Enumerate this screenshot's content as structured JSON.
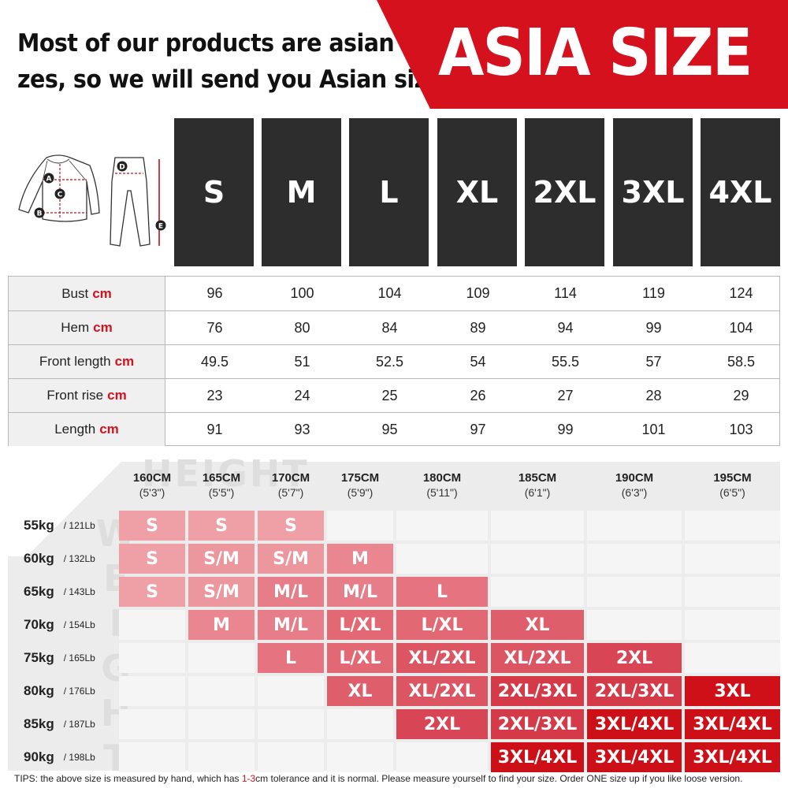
{
  "header": {
    "headline_line1": "Most of our products are asian si-",
    "headline_line2": "zes, so we will send you Asian sizes",
    "banner": "ASIA SIZE",
    "accent_color": "#d4111d"
  },
  "garment_labels": [
    "A",
    "B",
    "C",
    "D",
    "E"
  ],
  "sizes": [
    "S",
    "M",
    "L",
    "XL",
    "2XL",
    "3XL",
    "4XL"
  ],
  "measurements": [
    {
      "label": "Bust",
      "unit": "cm",
      "values": [
        "96",
        "100",
        "104",
        "109",
        "114",
        "119",
        "124"
      ]
    },
    {
      "label": "Hem",
      "unit": "cm",
      "values": [
        "76",
        "80",
        "84",
        "89",
        "94",
        "99",
        "104"
      ]
    },
    {
      "label": "Front length",
      "unit": "cm",
      "values": [
        "49.5",
        "51",
        "52.5",
        "54",
        "55.5",
        "57",
        "58.5"
      ]
    },
    {
      "label": "Front rise",
      "unit": "cm",
      "values": [
        "23",
        "24",
        "25",
        "26",
        "27",
        "28",
        "29"
      ]
    },
    {
      "label": "Length",
      "unit": "cm",
      "values": [
        "91",
        "93",
        "95",
        "97",
        "99",
        "101",
        "103"
      ]
    }
  ],
  "chart": {
    "height_watermark": "HEIGHT",
    "weight_watermark": "WEIGHT",
    "heights": [
      {
        "cm": "160CM",
        "ft": "(5'3\")"
      },
      {
        "cm": "165CM",
        "ft": "(5'5\")"
      },
      {
        "cm": "170CM",
        "ft": "(5'7\")"
      },
      {
        "cm": "175CM",
        "ft": "(5'9\")"
      },
      {
        "cm": "180CM",
        "ft": "(5'11\")"
      },
      {
        "cm": "185CM",
        "ft": "(6'1\")"
      },
      {
        "cm": "190CM",
        "ft": "(6'3\")"
      },
      {
        "cm": "195CM",
        "ft": "(6'5\")"
      }
    ],
    "weights": [
      {
        "kg": "55kg",
        "lb": "/ 121Lb"
      },
      {
        "kg": "60kg",
        "lb": "/ 132Lb"
      },
      {
        "kg": "65kg",
        "lb": "/ 143Lb"
      },
      {
        "kg": "70kg",
        "lb": "/ 154Lb"
      },
      {
        "kg": "75kg",
        "lb": "/ 165Lb"
      },
      {
        "kg": "80kg",
        "lb": "/ 176Lb"
      },
      {
        "kg": "85kg",
        "lb": "/ 187Lb"
      },
      {
        "kg": "90kg",
        "lb": "/ 198Lb"
      }
    ],
    "grid": [
      [
        "S",
        "S",
        "S",
        "",
        "",
        "",
        "",
        ""
      ],
      [
        "S",
        "S/M",
        "S/M",
        "M",
        "",
        "",
        "",
        ""
      ],
      [
        "S",
        "S/M",
        "M/L",
        "M/L",
        "L",
        "",
        "",
        ""
      ],
      [
        "",
        "M",
        "M/L",
        "L/XL",
        "L/XL",
        "XL",
        "",
        ""
      ],
      [
        "",
        "",
        "L",
        "L/XL",
        "XL/2XL",
        "XL/2XL",
        "2XL",
        ""
      ],
      [
        "",
        "",
        "",
        "XL",
        "XL/2XL",
        "2XL/3XL",
        "2XL/3XL",
        "3XL"
      ],
      [
        "",
        "",
        "",
        "",
        "2XL",
        "2XL/3XL",
        "3XL/4XL",
        "3XL/4XL"
      ],
      [
        "",
        "",
        "",
        "",
        "",
        "3XL/4XL",
        "3XL/4XL",
        "3XL/4XL"
      ]
    ],
    "size_colors": {
      "S": "#efa0a7",
      "S/M": "#ec969e",
      "M": "#e98690",
      "M/L": "#e77d88",
      "L": "#e57380",
      "L/XL": "#e26874",
      "XL": "#df5e6c",
      "XL/2XL": "#dc5563",
      "2XL": "#d84655",
      "2XL/3XL": "#d53a49",
      "3XL": "#d01018",
      "3XL/4XL": "#cd0f17"
    }
  },
  "tips": {
    "before": "TIPS:  the above size is measured by hand, which has ",
    "tolerance": "1-3",
    "after": "cm tolerance and it is normal. Please measure yourself to find your size. Order ONE size up if you like loose version."
  }
}
